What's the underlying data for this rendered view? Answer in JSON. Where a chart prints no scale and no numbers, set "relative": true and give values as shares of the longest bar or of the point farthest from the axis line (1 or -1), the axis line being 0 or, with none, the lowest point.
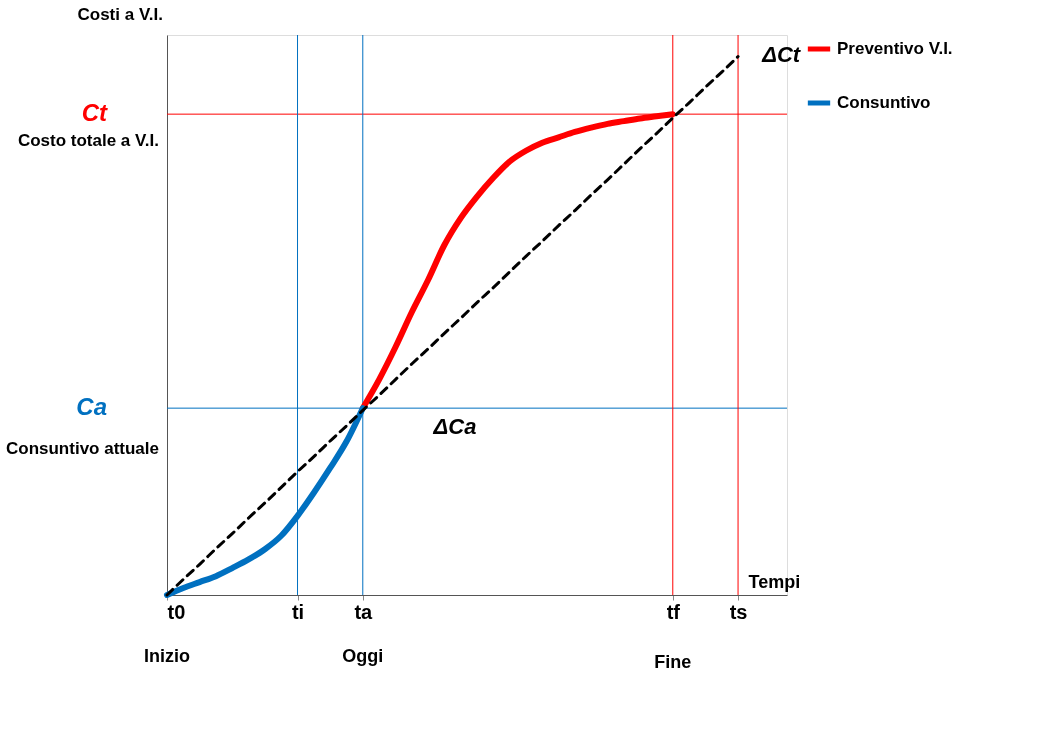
{
  "chart_data": {
    "type": "line",
    "relative": true,
    "ylabel": "Costi a V.I.",
    "xlabel": "Tempi",
    "categories": [
      "t0",
      null,
      null,
      null,
      null,
      null,
      null,
      null,
      "ti",
      null,
      null,
      null,
      "ta",
      null,
      null,
      null,
      null,
      null,
      null,
      null,
      null,
      null,
      null,
      null,
      null,
      null,
      null,
      null,
      null,
      null,
      null,
      "tf",
      null,
      null,
      null,
      "ts",
      null,
      null,
      null
    ],
    "series": [
      {
        "name": "Preventivo V.I.",
        "color": "#ff0000",
        "values": [
          null,
          null,
          null,
          null,
          null,
          null,
          null,
          null,
          null,
          null,
          null,
          null,
          0.347,
          0.4,
          0.46,
          0.525,
          0.585,
          0.65,
          0.7,
          0.74,
          0.775,
          0.805,
          0.825,
          0.84,
          0.85,
          0.86,
          0.868,
          0.875,
          0.88,
          0.885,
          0.889,
          0.893,
          null,
          null,
          null,
          null,
          null,
          null,
          null
        ]
      },
      {
        "name": "Consuntivo",
        "color": "#0070c0",
        "values": [
          0,
          0.013,
          0.024,
          0.035,
          0.05,
          0.066,
          0.085,
          0.11,
          0.147,
          0.19,
          0.236,
          0.285,
          0.347,
          null,
          null,
          null,
          null,
          null,
          null,
          null,
          null,
          null,
          null,
          null,
          null,
          null,
          null,
          null,
          null,
          null,
          null,
          null,
          null,
          null,
          null,
          null,
          null,
          null,
          null
        ]
      },
      {
        "color": "#000000",
        "line_style": "dashed",
        "values": [
          0,
          0.029,
          0.057,
          0.086,
          0.114,
          0.143,
          0.171,
          0.2,
          0.229,
          0.257,
          0.286,
          0.314,
          0.343,
          0.371,
          0.4,
          0.429,
          0.457,
          0.486,
          0.514,
          0.543,
          0.571,
          0.6,
          0.629,
          0.657,
          0.686,
          0.714,
          0.743,
          0.771,
          0.8,
          0.829,
          0.857,
          0.886,
          0.914,
          0.943,
          0.971,
          1,
          null,
          null,
          null
        ]
      }
    ],
    "ref_lines": [
      {
        "axis": "y",
        "value": 0.893,
        "label": "Ct",
        "color": "#ff0000"
      },
      {
        "axis": "y",
        "value": 0.347,
        "label": "Ca",
        "color": "#0070c0"
      },
      {
        "axis": "x",
        "value": "ti",
        "color": "#0070c0"
      },
      {
        "axis": "x",
        "value": "ta",
        "color": "#0070c0"
      },
      {
        "axis": "x",
        "value": "tf",
        "color": "#ff0000"
      },
      {
        "axis": "x",
        "value": "ts",
        "color": "#ff0000"
      }
    ],
    "annotations": [
      "Costo totale a V.I.",
      "Consuntivo attuale",
      "ΔCt",
      "ΔCa",
      "Inizio",
      "Oggi",
      "Fine"
    ],
    "legend": "right",
    "grid": false
  }
}
